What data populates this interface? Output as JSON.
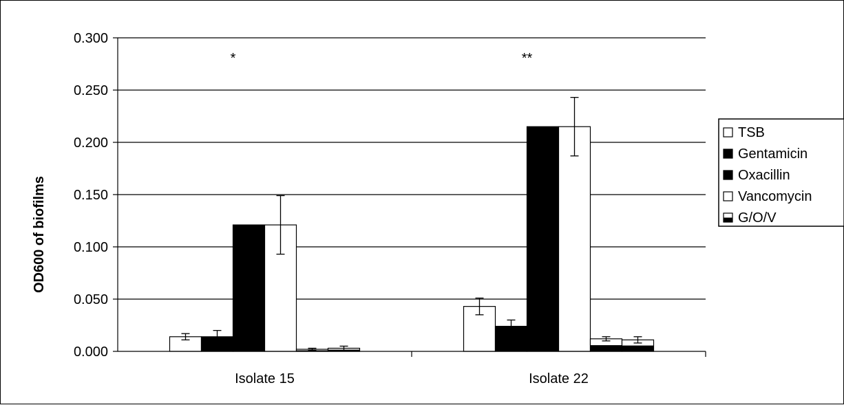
{
  "chart_data": {
    "type": "bar",
    "title": "",
    "xlabel": "",
    "ylabel": "OD600 of biofilms",
    "ylim": [
      0,
      0.3
    ],
    "yticks": [
      "0.000",
      "0.050",
      "0.100",
      "0.150",
      "0.200",
      "0.250",
      "0.300"
    ],
    "grid": true,
    "legend_position": "right",
    "categories": [
      "Isolate 15",
      "Isolate 22"
    ],
    "series": [
      {
        "name": "TSB",
        "values": [
          0.014,
          0.043
        ],
        "errors": [
          0.003,
          0.008
        ],
        "fill": "white"
      },
      {
        "name": "Gentamicin",
        "values": [
          0.014,
          0.024
        ],
        "errors": [
          0.006,
          0.006
        ],
        "fill": "black"
      },
      {
        "name": "Oxacillin",
        "values": [
          0.121,
          0.215
        ],
        "errors": [
          0.0,
          0.0
        ],
        "fill": "black"
      },
      {
        "name": "Vancomycin",
        "values": [
          0.121,
          0.215
        ],
        "errors": [
          0.028,
          0.028
        ],
        "fill": "white"
      },
      {
        "name": "G/O/V",
        "values": [
          0.002,
          0.012
        ],
        "errors": [
          0.001,
          0.002
        ],
        "fill": "half"
      },
      {
        "name": "",
        "values": [
          0.003,
          0.011
        ],
        "errors": [
          0.002,
          0.003
        ],
        "fill": "half"
      }
    ],
    "annotations": [
      {
        "category": "Isolate 15",
        "text": "*"
      },
      {
        "category": "Isolate 22",
        "text": "**"
      }
    ],
    "legend": [
      "TSB",
      "Gentamicin",
      "Oxacillin",
      "Vancomycin",
      "G/O/V"
    ]
  }
}
